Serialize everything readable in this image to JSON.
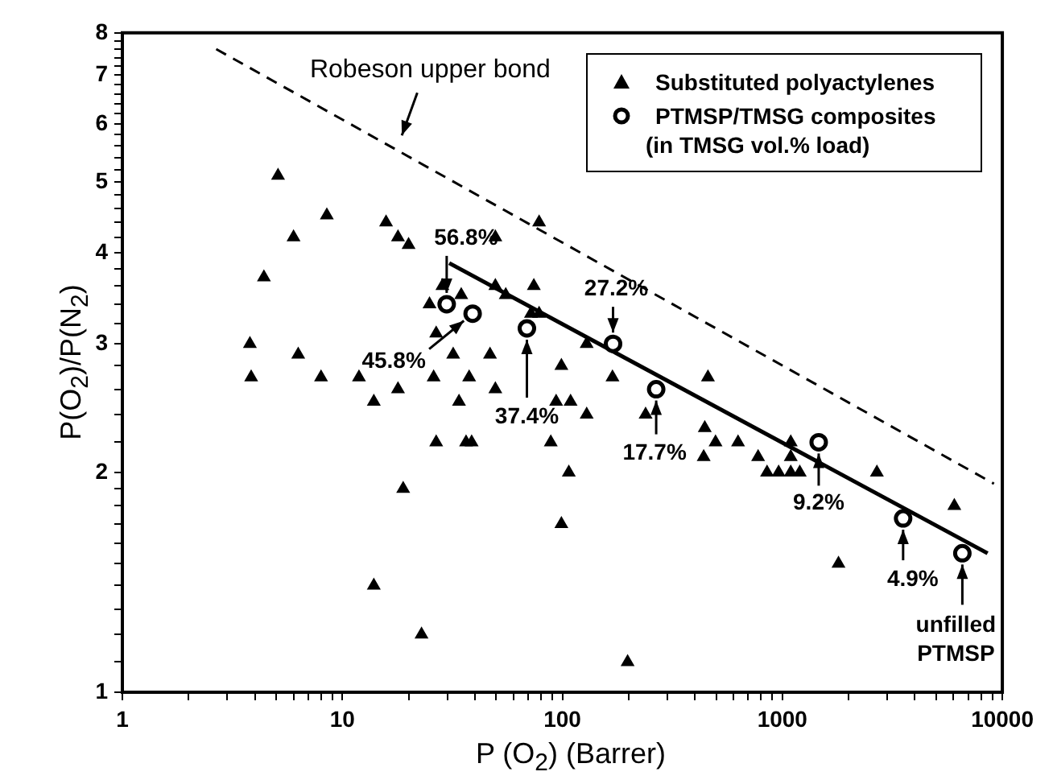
{
  "chart_data": {
    "type": "scatter",
    "xlabel": "P (O$_{2}$) (Barrer)",
    "ylabel": "P(O$_{2}$)/P(N$_{2}$)",
    "log": "xy",
    "grid": false,
    "legend": "top right",
    "xlim": [
      1,
      10000
    ],
    "xticks": [
      1,
      {
        "value": 2,
        "label": null
      },
      {
        "value": 3,
        "label": null
      },
      {
        "value": 4,
        "label": null
      },
      {
        "value": 5,
        "label": null
      },
      {
        "value": 6,
        "label": null
      },
      {
        "value": 7,
        "label": null
      },
      {
        "value": 8,
        "label": null
      },
      {
        "value": 9,
        "label": null
      },
      10,
      {
        "value": 20,
        "label": null
      },
      {
        "value": 30,
        "label": null
      },
      {
        "value": 40,
        "label": null
      },
      {
        "value": 50,
        "label": null
      },
      {
        "value": 60,
        "label": null
      },
      {
        "value": 70,
        "label": null
      },
      {
        "value": 80,
        "label": null
      },
      {
        "value": 90,
        "label": null
      },
      100,
      {
        "value": 200,
        "label": null
      },
      {
        "value": 300,
        "label": null
      },
      {
        "value": 400,
        "label": null
      },
      {
        "value": 500,
        "label": null
      },
      {
        "value": 600,
        "label": null
      },
      {
        "value": 700,
        "label": null
      },
      {
        "value": 800,
        "label": null
      },
      {
        "value": 900,
        "label": null
      },
      1000,
      {
        "value": 2000,
        "label": null
      },
      {
        "value": 3000,
        "label": null
      },
      {
        "value": 4000,
        "label": null
      },
      {
        "value": 5000,
        "label": null
      },
      {
        "value": 6000,
        "label": null
      },
      {
        "value": 7000,
        "label": null
      },
      {
        "value": 8000,
        "label": null
      },
      {
        "value": 9000,
        "label": null
      },
      10000
    ],
    "ylim": [
      1,
      8
    ],
    "yticks": [
      1,
      {
        "value": 1.1,
        "label": null
      },
      {
        "value": 1.2,
        "label": null
      },
      {
        "value": 1.3,
        "label": null
      },
      {
        "value": 1.4,
        "label": null
      },
      {
        "value": 1.5,
        "label": null
      },
      {
        "value": 1.6,
        "label": null
      },
      {
        "value": 1.7,
        "label": null
      },
      {
        "value": 1.8,
        "label": null
      },
      {
        "value": 1.9,
        "label": null
      },
      2,
      {
        "value": 2.2,
        "label": null
      },
      {
        "value": 2.4,
        "label": null
      },
      {
        "value": 2.6,
        "label": null
      },
      {
        "value": 2.8,
        "label": null
      },
      3,
      {
        "value": 3.2,
        "label": null
      },
      {
        "value": 3.4,
        "label": null
      },
      {
        "value": 3.6,
        "label": null
      },
      {
        "value": 3.8,
        "label": null
      },
      4,
      {
        "value": 4.2,
        "label": null
      },
      {
        "value": 4.4,
        "label": null
      },
      {
        "value": 4.6,
        "label": null
      },
      {
        "value": 4.8,
        "label": null
      },
      5,
      {
        "value": 5.2,
        "label": null
      },
      {
        "value": 5.4,
        "label": null
      },
      {
        "value": 5.6,
        "label": null
      },
      {
        "value": 5.8,
        "label": null
      },
      6,
      {
        "value": 6.2,
        "label": null
      },
      {
        "value": 6.4,
        "label": null
      },
      {
        "value": 6.6,
        "label": null
      },
      {
        "value": 6.8,
        "label": null
      },
      7,
      {
        "value": 7.2,
        "label": null
      },
      {
        "value": 7.4,
        "label": null
      },
      {
        "value": 7.6,
        "label": null
      },
      {
        "value": 7.8,
        "label": null
      },
      8
    ],
    "series": [
      {
        "name": "Substituted polyactylenes",
        "marker": "triangle",
        "color": "#000000",
        "x": [
          5.1,
          8.5,
          6.0,
          4.4,
          3.8,
          3.85,
          6.3,
          8.0,
          11.9,
          13.9,
          15.8,
          17.9,
          20,
          17.9,
          24.9,
          26.7,
          26,
          26.7,
          18.9,
          28.5,
          34.7,
          31.9,
          37.7,
          33.9,
          36.5,
          38.7,
          46.9,
          49.6,
          49.6,
          49.6,
          55.3,
          74.2,
          72,
          78.4,
          78.4,
          99,
          93.7,
          88.6,
          107,
          99,
          109,
          129,
          129,
          169,
          239,
          459,
          444,
          497,
          439,
          629,
          776,
          852,
          962,
          1092,
          1200,
          1092,
          1092,
          2690,
          6050,
          198,
          1800,
          13.9,
          22.9
        ],
        "values": [
          5.1,
          4.5,
          4.2,
          3.7,
          3.0,
          2.7,
          2.9,
          2.7,
          2.7,
          2.5,
          4.4,
          4.2,
          4.1,
          2.6,
          3.4,
          3.1,
          2.7,
          2.2,
          1.9,
          3.6,
          3.5,
          2.9,
          2.7,
          2.5,
          2.2,
          2.2,
          2.9,
          2.6,
          4.2,
          3.6,
          3.5,
          3.6,
          3.3,
          3.3,
          4.4,
          2.8,
          2.5,
          2.2,
          2.0,
          1.7,
          2.5,
          3.0,
          2.4,
          2.7,
          2.4,
          2.7,
          2.3,
          2.2,
          2.1,
          2.2,
          2.1,
          2.0,
          2.0,
          2.0,
          2.0,
          2.2,
          2.1,
          2.0,
          1.8,
          1.1,
          1.5,
          1.4,
          1.2
        ]
      },
      {
        "name": "PTMSP/TMSG composites",
        "marker": "circle",
        "color": "#000000",
        "x": [
          29.8,
          39.1,
          69,
          170,
          267,
          1463,
          3540,
          6580
        ],
        "values": [
          3.4,
          3.3,
          3.15,
          3.0,
          2.6,
          2.2,
          1.73,
          1.55
        ]
      },
      {
        "type": "line",
        "marker": "none",
        "line_style": "solid",
        "color": "#000000",
        "x": [
          30.6,
          8570
        ],
        "values": [
          3.87,
          1.55
        ]
      },
      {
        "type": "line",
        "marker": "none",
        "line_style": "dashed",
        "color": "#000000",
        "x": [
          2.67,
          9160
        ],
        "values": [
          7.6,
          1.93
        ]
      }
    ],
    "annotations": [
      {
        "text": "Robeson upper bond",
        "x": 17.9,
        "y": 5.6
      },
      {
        "text": "56.8%",
        "x": 29.8,
        "y": 3.4
      },
      {
        "text": "45.8%",
        "x": 39.1,
        "y": 3.3
      },
      {
        "text": "37.4%",
        "x": 69,
        "y": 3.15
      },
      {
        "text": "27.2%",
        "x": 170,
        "y": 3.0
      },
      {
        "text": "17.7%",
        "x": 267,
        "y": 2.6
      },
      {
        "text": "9.2%",
        "x": 1463,
        "y": 2.2
      },
      {
        "text": "4.9%",
        "x": 3540,
        "y": 1.73
      },
      {
        "text": "unfilled\nPTMSP",
        "x": 6580,
        "y": 1.55
      },
      "(in TMSG vol.% load)"
    ]
  }
}
